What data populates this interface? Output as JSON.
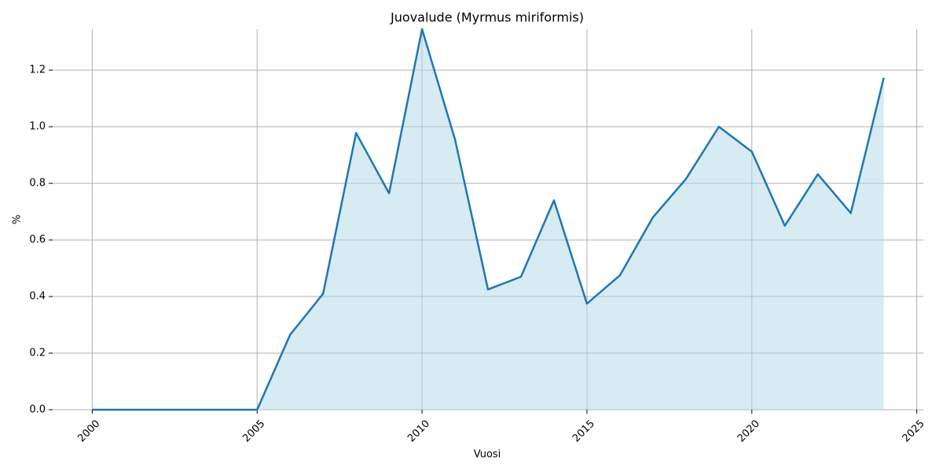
{
  "chart_data": {
    "type": "line",
    "title": "Juovalude (Myrmus miriformis)",
    "x_label": "Vuosi",
    "y_label": "%",
    "x": [
      2000,
      2001,
      2002,
      2003,
      2004,
      2005,
      2006,
      2007,
      2008,
      2009,
      2010,
      2011,
      2012,
      2013,
      2014,
      2015,
      2016,
      2017,
      2018,
      2019,
      2020,
      2021,
      2022,
      2023,
      2024
    ],
    "series": [
      {
        "color": "#1f77b4",
        "fill": "#add8e6",
        "values": [
          0,
          0,
          0,
          0,
          0,
          0,
          0.265,
          0.41,
          0.978,
          0.765,
          1.345,
          0.955,
          0.425,
          0.47,
          0.74,
          0.375,
          0.475,
          0.68,
          0.815,
          1.0,
          0.912,
          0.65,
          0.832,
          0.695,
          1.173
        ]
      }
    ],
    "xlim": [
      1998.8,
      2025.2
    ],
    "xticks": [
      2000,
      2005,
      2010,
      2015,
      2020,
      2025
    ],
    "ylim": [
      0,
      1.345
    ],
    "yticks": [
      {
        "value": 0,
        "label": "0.0"
      },
      {
        "value": 0.2,
        "label": "0.2"
      },
      {
        "value": 0.4,
        "label": "0.4"
      },
      {
        "value": 0.6,
        "label": "0.6"
      },
      {
        "value": 0.8,
        "label": "0.8"
      },
      {
        "value": 1.0,
        "label": "1.0"
      },
      {
        "value": 1.2,
        "label": "1.2"
      }
    ],
    "grid": true
  }
}
